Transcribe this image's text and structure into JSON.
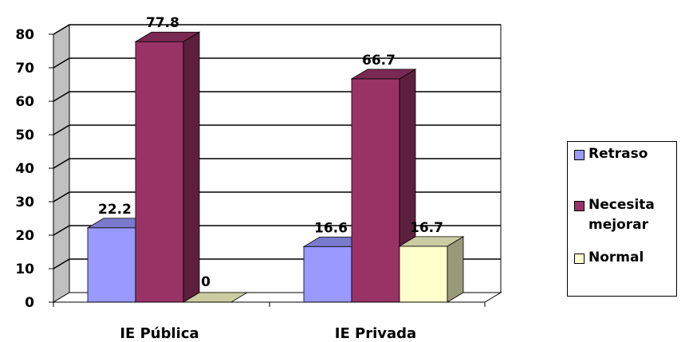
{
  "chart_data": {
    "type": "bar",
    "categories": [
      "IE Pública",
      "IE Privada"
    ],
    "series": [
      {
        "name": "Retraso",
        "values": [
          22.2,
          16.6
        ],
        "color": "#9999FF",
        "labels": [
          "22.2",
          "16.6"
        ]
      },
      {
        "name": "Necesita mejorar",
        "values": [
          77.8,
          66.7
        ],
        "color": "#993366",
        "labels": [
          "77.8",
          "66.7"
        ]
      },
      {
        "name": "Normal",
        "values": [
          0,
          16.7
        ],
        "color": "#FFFFCC",
        "labels": [
          "0",
          "16.7"
        ]
      }
    ],
    "ylim": [
      0,
      80
    ],
    "yticks": [
      "0",
      "10",
      "20",
      "30",
      "40",
      "50",
      "60",
      "70",
      "80"
    ],
    "title": "",
    "xlabel": "",
    "ylabel": "",
    "grid": true,
    "style": "3d-clustered-column",
    "legend_position": "right"
  },
  "legend": {
    "items": [
      {
        "label_lines": [
          "Retraso"
        ]
      },
      {
        "label_lines": [
          "Necesita",
          "mejorar"
        ]
      },
      {
        "label_lines": [
          "Normal"
        ]
      }
    ]
  }
}
